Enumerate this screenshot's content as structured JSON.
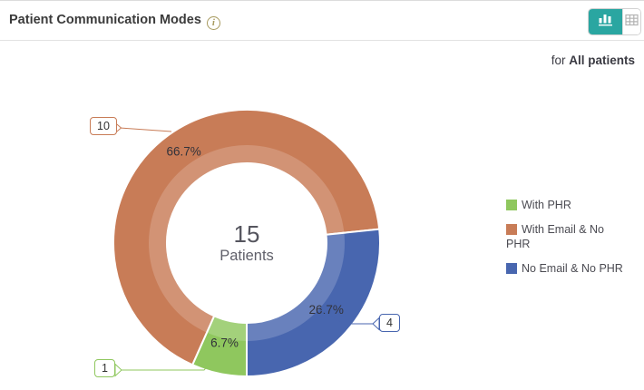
{
  "header": {
    "title": "Patient Communication Modes",
    "info_glyph": "i",
    "view_toggle": {
      "chart_view": "chart view",
      "table_view": "table view",
      "active_color": "#2AA6A1"
    }
  },
  "subtitle": {
    "prefix": "for ",
    "scope": "All patients"
  },
  "center": {
    "value": "15",
    "label": "Patients"
  },
  "chart_data": {
    "type": "pie",
    "subtype": "donut",
    "title": "Patient Communication Modes",
    "total": 15,
    "start_angle_deg": 204,
    "center_label": {
      "value": 15,
      "unit": "Patients"
    },
    "series": [
      {
        "name": "With Email & No PHR",
        "value": 10,
        "percent": 66.7,
        "percent_label": "66.7%",
        "callout": "10",
        "color": "#C87C57"
      },
      {
        "name": "No Email & No PHR",
        "value": 4,
        "percent": 26.7,
        "percent_label": "26.7%",
        "callout": "4",
        "color": "#4866AF"
      },
      {
        "name": "With PHR",
        "value": 1,
        "percent": 6.7,
        "percent_label": "6.7%",
        "callout": "1",
        "color": "#8FC75E"
      }
    ],
    "legend": [
      {
        "label": "With PHR",
        "color": "#8FC75E"
      },
      {
        "label": "With Email & No PHR",
        "color": "#C87C57"
      },
      {
        "label": "No Email & No PHR",
        "color": "#4866AF"
      }
    ],
    "legend_position": "right",
    "label_color": "#32323a"
  }
}
